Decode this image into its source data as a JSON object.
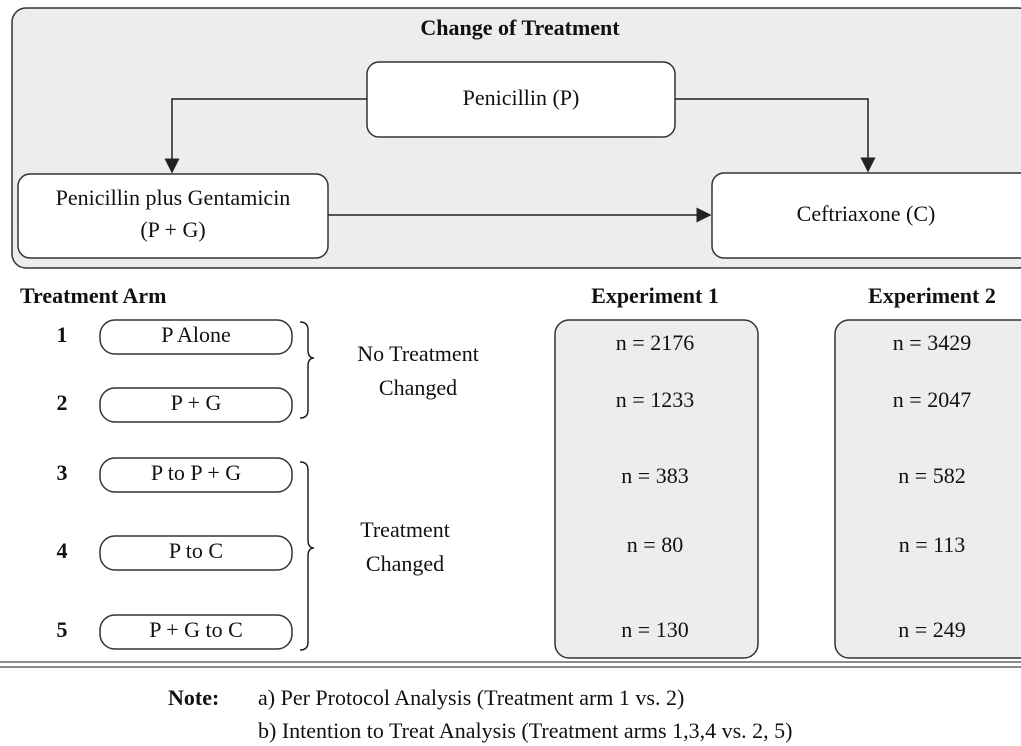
{
  "title": "Change of Treatment",
  "nodes": [
    {
      "lines": [
        "Penicillin (P)"
      ]
    },
    {
      "lines": [
        "Penicillin plus Gentamicin",
        "(P + G)"
      ]
    },
    {
      "lines": [
        "Ceftriaxone (C)"
      ]
    }
  ],
  "arm_header": "Treatment Arm",
  "arms": [
    {
      "number": 1,
      "label": "P Alone"
    },
    {
      "number": 2,
      "label": "P + G"
    },
    {
      "number": 3,
      "label": "P to P + G"
    },
    {
      "number": 4,
      "label": "P to C"
    },
    {
      "number": 5,
      "label": "P + G  to C"
    }
  ],
  "groups": [
    {
      "lines": [
        "No Treatment",
        "Changed"
      ]
    },
    {
      "lines": [
        "Treatment",
        "Changed"
      ]
    }
  ],
  "experiments": [
    {
      "name": "Experiment 1",
      "values": [
        "n = 2176",
        "n = 1233",
        "n = 383",
        "n = 80",
        "n = 130"
      ]
    },
    {
      "name": "Experiment 2",
      "values": [
        "n = 3429",
        "n = 2047",
        "n = 582",
        "n = 113",
        "n = 249"
      ]
    }
  ],
  "note": {
    "label": "Note:",
    "items": [
      "a)  Per Protocol Analysis (Treatment arm 1 vs. 2)",
      "b)  Intention to Treat Analysis (Treatment arms 1,3,4 vs. 2, 5)"
    ]
  }
}
